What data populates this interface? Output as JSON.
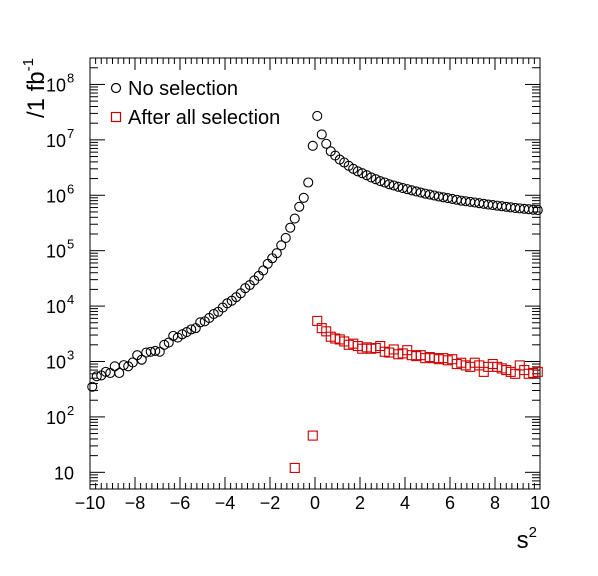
{
  "chart_data": {
    "type": "scatter",
    "xlabel_base": "s",
    "xlabel_sup": "2",
    "ylabel_prefix": "/1 fb",
    "ylabel_sup": "-1",
    "xlim": [
      -10,
      10
    ],
    "ylim": [
      5,
      300000000
    ],
    "yscale": "log",
    "grid": false,
    "legend_position": "top-left",
    "x_ticks": [
      {
        "value": -10,
        "label": "−10"
      },
      {
        "value": -8,
        "label": "−8"
      },
      {
        "value": -6,
        "label": "−6"
      },
      {
        "value": -4,
        "label": "−4"
      },
      {
        "value": -2,
        "label": "−2"
      },
      {
        "value": 0,
        "label": "0"
      },
      {
        "value": 2,
        "label": "2"
      },
      {
        "value": 4,
        "label": "4"
      },
      {
        "value": 6,
        "label": "6"
      },
      {
        "value": 8,
        "label": "8"
      },
      {
        "value": 10,
        "label": "10"
      }
    ],
    "y_ticks": [
      {
        "value": 10,
        "base": "10",
        "exp": ""
      },
      {
        "value": 100,
        "base": "10",
        "exp": "2"
      },
      {
        "value": 1000,
        "base": "10",
        "exp": "3"
      },
      {
        "value": 10000,
        "base": "10",
        "exp": "4"
      },
      {
        "value": 100000,
        "base": "10",
        "exp": "5"
      },
      {
        "value": 1000000,
        "base": "10",
        "exp": "6"
      },
      {
        "value": 10000000,
        "base": "10",
        "exp": "7"
      },
      {
        "value": 100000000,
        "base": "10",
        "exp": "8"
      }
    ],
    "series": [
      {
        "name": "No selection",
        "marker": "circle",
        "color": "#000000",
        "points": [
          [
            -9.9,
            350
          ],
          [
            -9.7,
            540
          ],
          [
            -9.5,
            560
          ],
          [
            -9.3,
            650
          ],
          [
            -9.1,
            620
          ],
          [
            -8.9,
            820
          ],
          [
            -8.7,
            620
          ],
          [
            -8.5,
            860
          ],
          [
            -8.3,
            820
          ],
          [
            -8.1,
            960
          ],
          [
            -7.9,
            1300
          ],
          [
            -7.7,
            1080
          ],
          [
            -7.5,
            1450
          ],
          [
            -7.3,
            1500
          ],
          [
            -7.1,
            1550
          ],
          [
            -6.9,
            1500
          ],
          [
            -6.7,
            2000
          ],
          [
            -6.5,
            2200
          ],
          [
            -6.3,
            2900
          ],
          [
            -6.1,
            2700
          ],
          [
            -5.9,
            3100
          ],
          [
            -5.7,
            3400
          ],
          [
            -5.5,
            3800
          ],
          [
            -5.3,
            4000
          ],
          [
            -5.1,
            5100
          ],
          [
            -4.9,
            5300
          ],
          [
            -4.7,
            6100
          ],
          [
            -4.5,
            7200
          ],
          [
            -4.3,
            7900
          ],
          [
            -4.1,
            9400
          ],
          [
            -3.9,
            11200
          ],
          [
            -3.7,
            12500
          ],
          [
            -3.5,
            14500
          ],
          [
            -3.3,
            17000
          ],
          [
            -3.1,
            21000
          ],
          [
            -2.9,
            24000
          ],
          [
            -2.7,
            29000
          ],
          [
            -2.5,
            35000
          ],
          [
            -2.3,
            44000
          ],
          [
            -2.1,
            58000
          ],
          [
            -1.9,
            73000
          ],
          [
            -1.7,
            90000
          ],
          [
            -1.5,
            125000
          ],
          [
            -1.3,
            170000
          ],
          [
            -1.1,
            260000
          ],
          [
            -0.9,
            380000
          ],
          [
            -0.7,
            620000
          ],
          [
            -0.5,
            900000
          ],
          [
            -0.3,
            1700000
          ],
          [
            -0.1,
            7800000
          ],
          [
            0.1,
            27000000
          ],
          [
            0.3,
            12500000
          ],
          [
            0.5,
            8500000
          ],
          [
            0.7,
            6200000
          ],
          [
            0.9,
            5200000
          ],
          [
            1.1,
            4400000
          ],
          [
            1.3,
            3900000
          ],
          [
            1.5,
            3400000
          ],
          [
            1.7,
            3000000
          ],
          [
            1.9,
            2700000
          ],
          [
            2.1,
            2500000
          ],
          [
            2.3,
            2300000
          ],
          [
            2.5,
            2100000
          ],
          [
            2.7,
            1950000
          ],
          [
            2.9,
            1800000
          ],
          [
            3.1,
            1700000
          ],
          [
            3.3,
            1580000
          ],
          [
            3.5,
            1500000
          ],
          [
            3.7,
            1420000
          ],
          [
            3.9,
            1350000
          ],
          [
            4.1,
            1290000
          ],
          [
            4.3,
            1230000
          ],
          [
            4.5,
            1170000
          ],
          [
            4.7,
            1120000
          ],
          [
            4.9,
            1070000
          ],
          [
            5.1,
            1030000
          ],
          [
            5.3,
            990000
          ],
          [
            5.5,
            950000
          ],
          [
            5.7,
            920000
          ],
          [
            5.9,
            890000
          ],
          [
            6.1,
            860000
          ],
          [
            6.3,
            830000
          ],
          [
            6.5,
            800000
          ],
          [
            6.7,
            780000
          ],
          [
            6.9,
            760000
          ],
          [
            7.1,
            740000
          ],
          [
            7.3,
            720000
          ],
          [
            7.5,
            700000
          ],
          [
            7.7,
            680000
          ],
          [
            7.9,
            665000
          ],
          [
            8.1,
            650000
          ],
          [
            8.3,
            635000
          ],
          [
            8.5,
            620000
          ],
          [
            8.7,
            605000
          ],
          [
            8.9,
            590000
          ],
          [
            9.1,
            580000
          ],
          [
            9.3,
            570000
          ],
          [
            9.5,
            560000
          ],
          [
            9.7,
            550000
          ],
          [
            9.9,
            540000
          ]
        ]
      },
      {
        "name": "After all selection",
        "marker": "square",
        "color": "#cc0000",
        "points": [
          [
            -0.9,
            12
          ],
          [
            -0.1,
            46
          ],
          [
            0.1,
            5400
          ],
          [
            0.3,
            4000
          ],
          [
            0.5,
            3500
          ],
          [
            0.7,
            2800
          ],
          [
            0.9,
            2600
          ],
          [
            1.1,
            2500
          ],
          [
            1.3,
            2300
          ],
          [
            1.5,
            2000
          ],
          [
            1.7,
            2100
          ],
          [
            1.9,
            1900
          ],
          [
            2.1,
            1700
          ],
          [
            2.3,
            1800
          ],
          [
            2.5,
            1700
          ],
          [
            2.7,
            1750
          ],
          [
            2.9,
            1900
          ],
          [
            3.1,
            1500
          ],
          [
            3.3,
            1450
          ],
          [
            3.5,
            1650
          ],
          [
            3.7,
            1350
          ],
          [
            3.9,
            1400
          ],
          [
            4.1,
            1600
          ],
          [
            4.3,
            1300
          ],
          [
            4.5,
            1250
          ],
          [
            4.7,
            1300
          ],
          [
            4.9,
            1150
          ],
          [
            5.1,
            1200
          ],
          [
            5.3,
            1150
          ],
          [
            5.5,
            1100
          ],
          [
            5.7,
            1150
          ],
          [
            5.9,
            1050
          ],
          [
            6.1,
            1100
          ],
          [
            6.3,
            900
          ],
          [
            6.5,
            950
          ],
          [
            6.7,
            850
          ],
          [
            6.9,
            800
          ],
          [
            7.1,
            950
          ],
          [
            7.3,
            850
          ],
          [
            7.5,
            650
          ],
          [
            7.7,
            800
          ],
          [
            7.9,
            900
          ],
          [
            8.1,
            800
          ],
          [
            8.3,
            750
          ],
          [
            8.5,
            700
          ],
          [
            8.7,
            650
          ],
          [
            8.9,
            600
          ],
          [
            9.1,
            850
          ],
          [
            9.3,
            700
          ],
          [
            9.5,
            600
          ],
          [
            9.7,
            620
          ],
          [
            9.9,
            650
          ]
        ]
      }
    ]
  }
}
